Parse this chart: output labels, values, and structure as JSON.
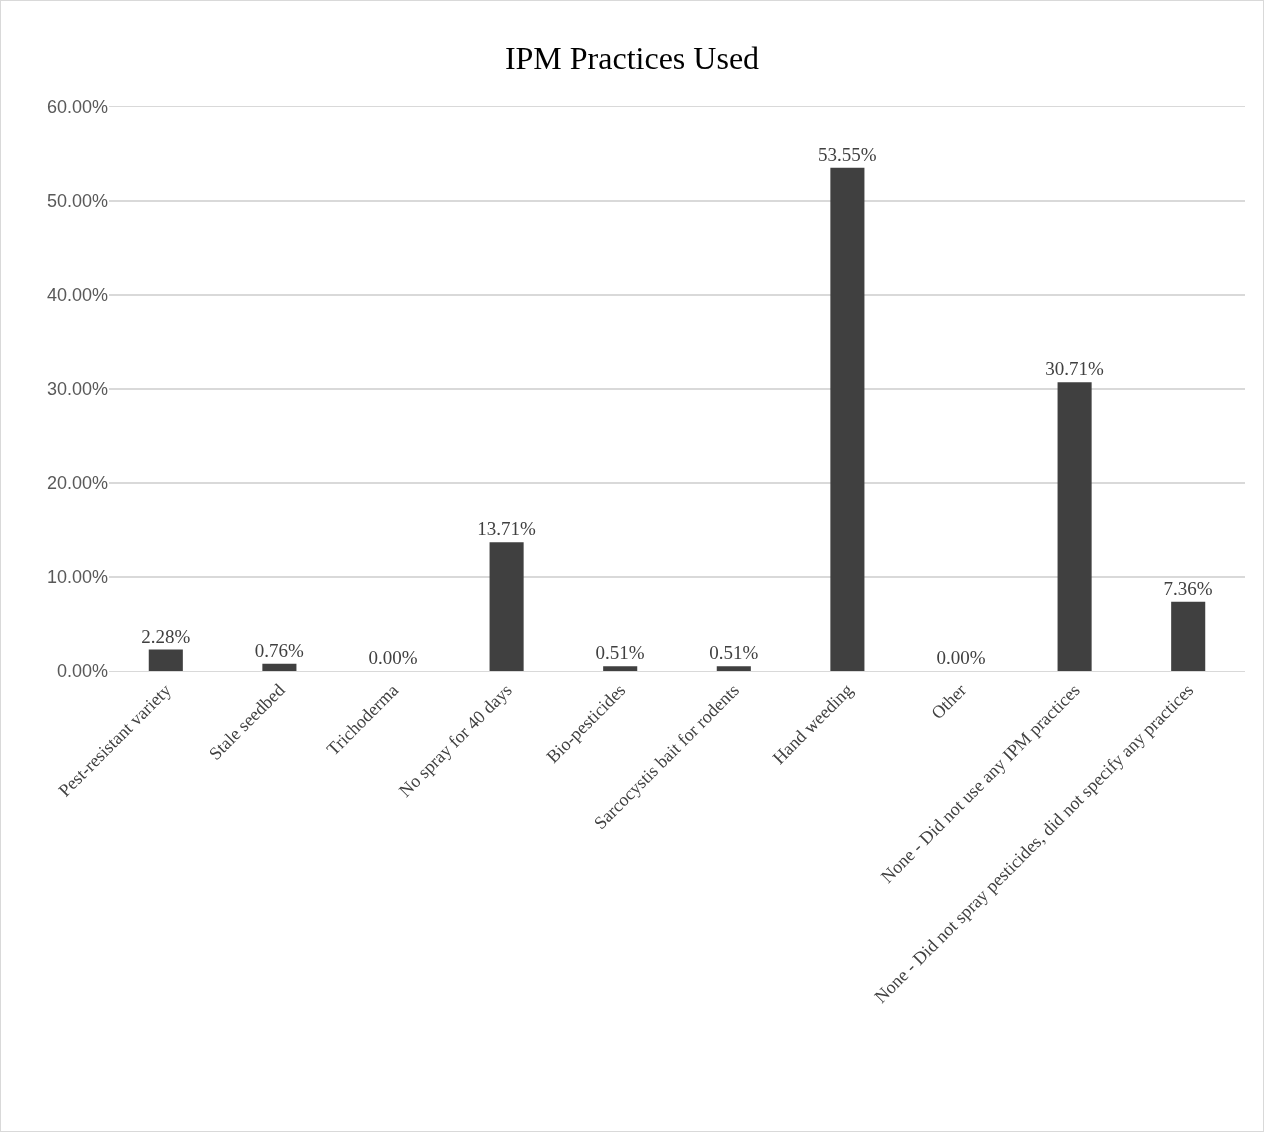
{
  "chart_data": {
    "type": "bar",
    "title": "IPM Practices Used",
    "categories": [
      "Pest-resistant variety",
      "Stale seedbed",
      "Trichoderma",
      "No spray for 40 days",
      "Bio-pesticides",
      "Sarcocystis bait for rodents",
      "Hand weeding",
      "Other",
      "None - Did not use any IPM practices",
      "None - Did not spray pesticides, did not specify any practices"
    ],
    "values": [
      2.28,
      0.76,
      0,
      13.71,
      0.51,
      0.51,
      53.55,
      0,
      30.71,
      7.36
    ],
    "value_labels": [
      "2.28%",
      "0.76%",
      "0.00%",
      "13.71%",
      "0.51%",
      "0.51%",
      "53.55%",
      "0.00%",
      "30.71%",
      "7.36%"
    ],
    "color": "#404040",
    "ylim": [
      0,
      60
    ],
    "yticks": [
      {
        "value": 0,
        "label": "0.00%"
      },
      {
        "value": 10,
        "label": "10.00%"
      },
      {
        "value": 20,
        "label": "20.00%"
      },
      {
        "value": 30,
        "label": "30.00%"
      },
      {
        "value": 40,
        "label": "40.00%"
      },
      {
        "value": 50,
        "label": "50.00%"
      },
      {
        "value": 60,
        "label": "60.00%"
      }
    ],
    "grid": "y"
  }
}
